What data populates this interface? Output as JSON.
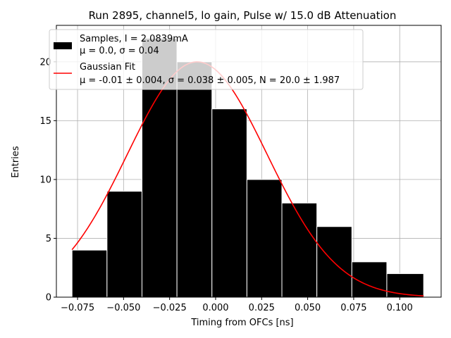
{
  "chart_data": {
    "type": "bar",
    "title": "Run 2895, channel5, lo gain, Pulse w/ 15.0 dB Attenuation",
    "xlabel": "Timing from OFCs [ns]",
    "ylabel": "Entries",
    "xlim": [
      -0.0865,
      0.1225
    ],
    "ylim": [
      0,
      23.1
    ],
    "grid": true,
    "x_ticks": [
      -0.075,
      -0.05,
      -0.025,
      0.0,
      0.025,
      0.05,
      0.075,
      0.1
    ],
    "x_tick_labels": [
      "−0.075",
      "−0.050",
      "−0.025",
      "0.000",
      "0.025",
      "0.050",
      "0.075",
      "0.100"
    ],
    "y_ticks": [
      0,
      5,
      10,
      15,
      20
    ],
    "y_tick_labels": [
      "0",
      "5",
      "10",
      "15",
      "20"
    ],
    "histogram": {
      "bin_edges": [
        -0.078,
        -0.059,
        -0.04,
        -0.021,
        -0.002,
        0.017,
        0.036,
        0.055,
        0.074,
        0.093,
        0.113
      ],
      "counts": [
        4,
        9,
        22,
        20,
        16,
        10,
        8,
        6,
        3,
        2
      ],
      "color": "#000000",
      "edge_color": "#ffffff"
    },
    "fit": {
      "type": "gaussian",
      "mu": -0.01,
      "sigma": 0.038,
      "N": 20.0,
      "x_range": [
        -0.078,
        0.113
      ],
      "color": "#ff0000"
    },
    "legend": {
      "placement": "top-left",
      "entries": [
        {
          "line1": "Samples, I = 2.0839mA",
          "line2": "μ = 0.0, σ = 0.04",
          "swatch": "bar"
        },
        {
          "line1": "Gaussian Fit",
          "line2": "μ = -0.01 ± 0.004, σ = 0.038 ± 0.005, N = 20.0 ± 1.987",
          "swatch": "line"
        }
      ]
    }
  }
}
